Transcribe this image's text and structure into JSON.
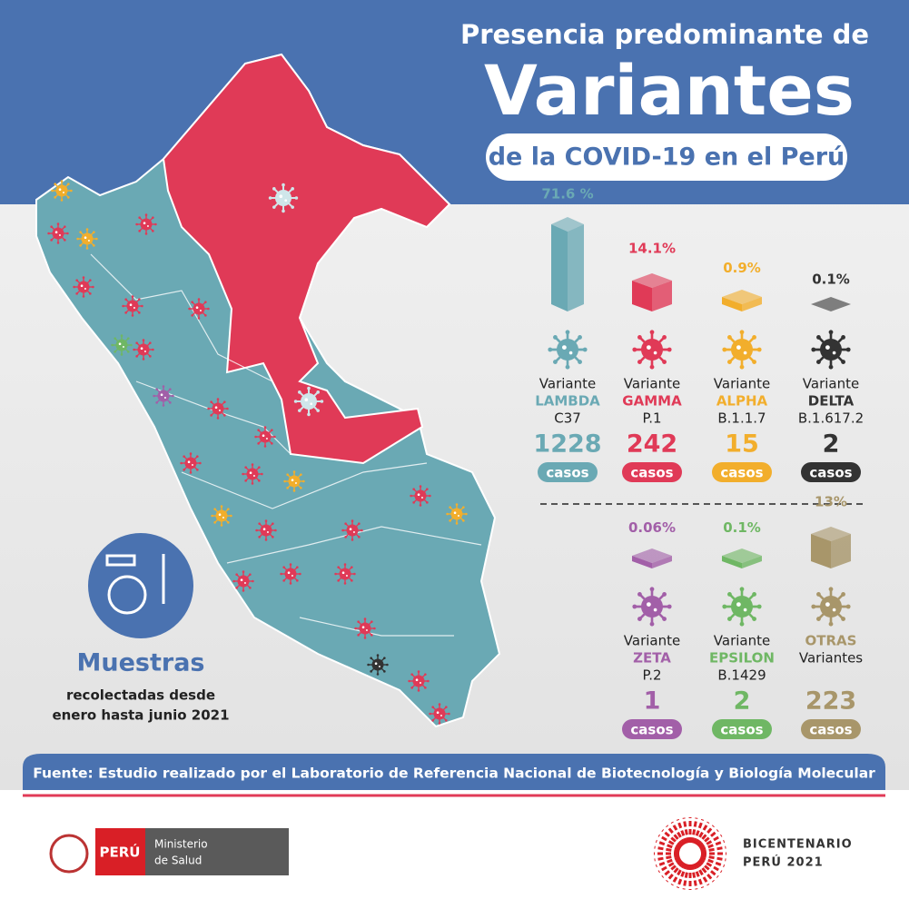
{
  "header": {
    "line1": "Presencia predominante de",
    "line2": "Variantes",
    "line3": "de la COVID-19 en el Perú"
  },
  "variants": [
    {
      "percent": "71.6 %",
      "lines": [
        "Variante",
        "LAMBDA",
        "C37"
      ],
      "cases": "1228",
      "unit": "casos",
      "color": "#6aa9b4"
    },
    {
      "percent": "14.1%",
      "lines": [
        "Variante",
        "GAMMA",
        "P.1"
      ],
      "cases": "242",
      "unit": "casos",
      "color": "#e03a57"
    },
    {
      "percent": "0.9%",
      "lines": [
        "Variante",
        "ALPHA",
        "B.1.1.7"
      ],
      "cases": "15",
      "unit": "casos",
      "color": "#f2ae2c"
    },
    {
      "percent": "0.1%",
      "lines": [
        "Variante",
        "DELTA",
        "B.1.617.2"
      ],
      "cases": "2",
      "unit": "casos",
      "color": "#333333"
    },
    {
      "percent": "0.06%",
      "lines": [
        "Variante",
        "ZETA",
        "P.2"
      ],
      "cases": "1",
      "unit": "casos",
      "color": "#a25fa8"
    },
    {
      "percent": "0.1%",
      "lines": [
        "Variante",
        "EPSILON",
        "B.1429"
      ],
      "cases": "2",
      "unit": "casos",
      "color": "#6fb764"
    },
    {
      "percent": "13%",
      "lines": [
        "OTRAS",
        "Variantes"
      ],
      "cases": "223",
      "unit": "casos",
      "color": "#a8966a"
    }
  ],
  "samples": {
    "title": "Muestras",
    "line1": "recolectadas desde",
    "line2": "enero hasta junio 2021"
  },
  "footer": {
    "source": "Fuente: Estudio realizado por el Laboratorio de Referencia Nacional de Biotecnología y Biología Molecular",
    "peru": "PERÚ",
    "ministry1": "Ministerio",
    "ministry2": "de Salud",
    "bicentenario1": "BICENTENARIO",
    "bicentenario2": "PERÚ 2021"
  }
}
